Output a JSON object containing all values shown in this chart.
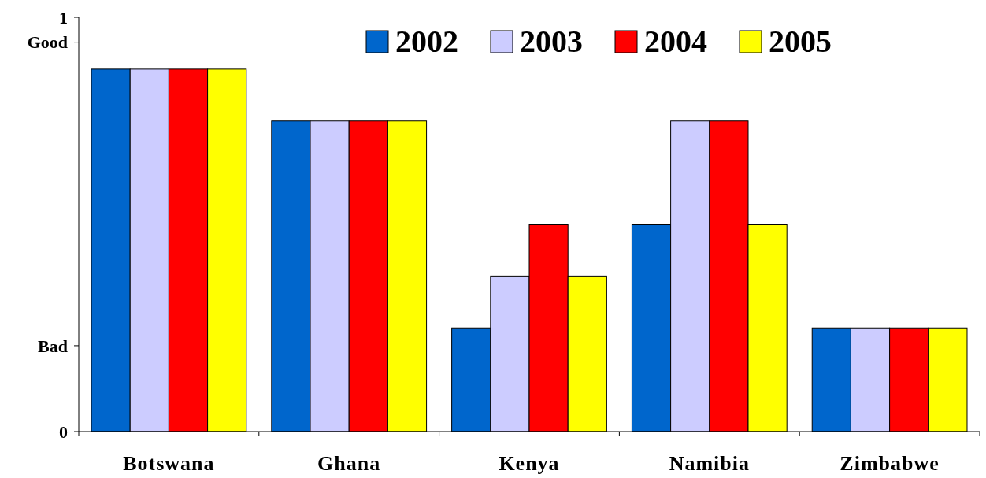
{
  "chart_data": {
    "type": "bar",
    "categories": [
      "Botswana",
      "Ghana",
      "Kenya",
      "Namibia",
      "Zimbabwe"
    ],
    "series": [
      {
        "name": "2002",
        "color": "#0066cc",
        "values": [
          0.875,
          0.75,
          0.25,
          0.5,
          0.25
        ]
      },
      {
        "name": "2003",
        "color": "#ccccff",
        "values": [
          0.875,
          0.75,
          0.375,
          0.75,
          0.25
        ]
      },
      {
        "name": "2004",
        "color": "#ff0000",
        "values": [
          0.875,
          0.75,
          0.5,
          0.75,
          0.25
        ]
      },
      {
        "name": "2005",
        "color": "#ffff00",
        "values": [
          0.875,
          0.75,
          0.375,
          0.5,
          0.25
        ]
      }
    ],
    "ylim": [
      0,
      1
    ],
    "yticks": [
      0,
      {
        "value": 0.207,
        "label": "Bad"
      },
      {
        "value": 0.94,
        "label": "Good"
      },
      1
    ],
    "legend": "top right",
    "grid": false
  }
}
